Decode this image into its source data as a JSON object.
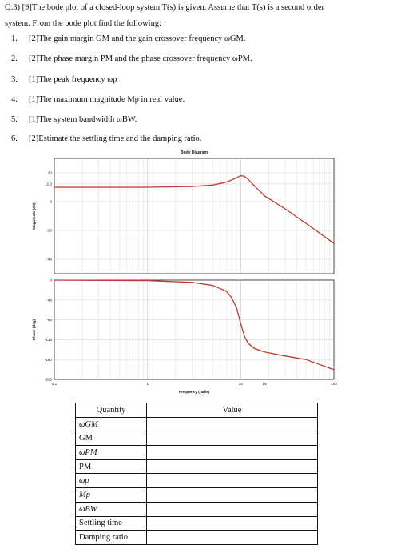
{
  "question": {
    "line1": "Q.3)  [9]The bode plot of a closed-loop system T(s) is given.  Assume that T(s) is a second order",
    "line2": "system.  From the bode plot find the following:",
    "items": [
      {
        "num": "1.",
        "text": "[2]The gain margin GM and the gain crossover frequency ωGM."
      },
      {
        "num": "2.",
        "text": "[2]The phase margin PM and the phase crossover frequency ωPM."
      },
      {
        "num": "3.",
        "text": "[1]The peak frequency ωp"
      },
      {
        "num": "4.",
        "text": "[1]The maximum magnitude Mp in real value."
      },
      {
        "num": "5.",
        "text": "[1]The system bandwidth ωBW."
      },
      {
        "num": "6.",
        "text": "[2]Estimate the settling time and the damping ratio."
      }
    ]
  },
  "chart_data": {
    "type": "line",
    "title": "Bode Diagram",
    "xlabel": "Frequency (rad/s)",
    "xscale": "log",
    "xlim": [
      0.1,
      100
    ],
    "x_ticks": [
      "0.1",
      "1",
      "10",
      "18",
      "100"
    ],
    "grid": true,
    "line_color": "#c0392b",
    "magnitude": {
      "ylabel": "Magnitude (dB)",
      "ylim": [
        -50,
        30
      ],
      "y_ticks": [
        "20",
        "12.3",
        "0",
        "-20",
        "-40"
      ],
      "x": [
        0.1,
        1,
        3,
        5,
        7,
        9,
        10,
        11,
        12,
        14,
        18,
        30,
        50,
        100
      ],
      "y": [
        10,
        10,
        10.5,
        11.5,
        13.5,
        16.5,
        18,
        17.5,
        15.5,
        11,
        4,
        -5,
        -15,
        -29
      ]
    },
    "phase": {
      "ylabel": "Phase (deg)",
      "ylim": [
        -225,
        0
      ],
      "y_ticks": [
        "0",
        "-45",
        "-90",
        "-135",
        "-180",
        "-225"
      ],
      "x": [
        0.1,
        1,
        3,
        5,
        7,
        8,
        9,
        10,
        11,
        12,
        14,
        18,
        30,
        50,
        100
      ],
      "y": [
        0,
        -1,
        -5,
        -12,
        -25,
        -40,
        -62,
        -98,
        -128,
        -143,
        -155,
        -163,
        -172,
        -180,
        -203
      ]
    }
  },
  "table": {
    "headers": [
      "Quantity",
      "Value"
    ],
    "rows": [
      "ωGM",
      "GM",
      "ωPM",
      "PM",
      "ωp",
      "Mp",
      "ωBW",
      "Settling time",
      "Damping ratio"
    ]
  }
}
